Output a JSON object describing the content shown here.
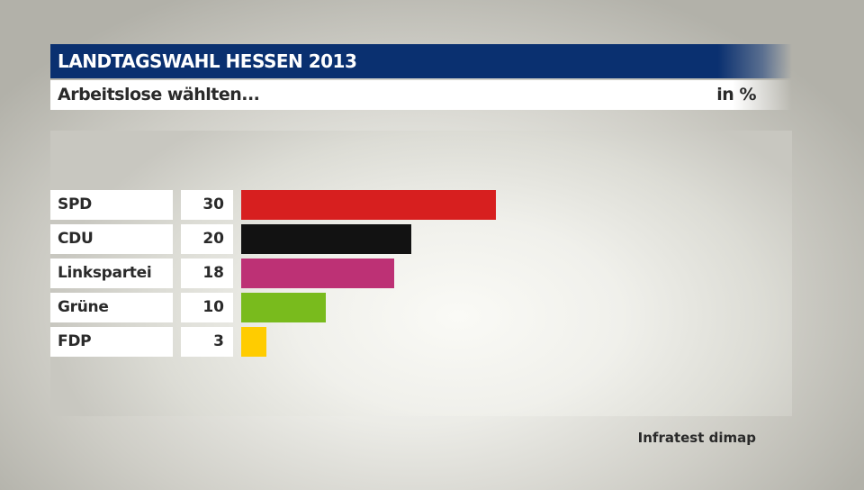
{
  "header": {
    "title": "LANDTAGSWAHL HESSEN 2013",
    "subtitle": "Arbeitslose wählten...",
    "unit": "in %"
  },
  "rows": [
    {
      "label": "SPD",
      "value": "30",
      "color": "#d71f1f"
    },
    {
      "label": "CDU",
      "value": "20",
      "color": "#121212"
    },
    {
      "label": "Linkspartei",
      "value": "18",
      "color": "#bd3175"
    },
    {
      "label": "Grüne",
      "value": "10",
      "color": "#79bb1d"
    },
    {
      "label": "FDP",
      "value": "3",
      "color": "#ffcc00"
    }
  ],
  "footer": {
    "source": "Infratest dimap"
  },
  "chart_data": {
    "type": "bar",
    "orientation": "horizontal",
    "title": "LANDTAGSWAHL HESSEN 2013",
    "subtitle": "Arbeitslose wählten...",
    "unit": "in %",
    "categories": [
      "SPD",
      "CDU",
      "Linkspartei",
      "Grüne",
      "FDP"
    ],
    "values": [
      30,
      20,
      18,
      10,
      3
    ],
    "colors": [
      "#d71f1f",
      "#121212",
      "#bd3175",
      "#79bb1d",
      "#ffcc00"
    ],
    "xlabel": "",
    "ylabel": "",
    "grid": false,
    "legend": null,
    "source": "Infratest dimap"
  }
}
